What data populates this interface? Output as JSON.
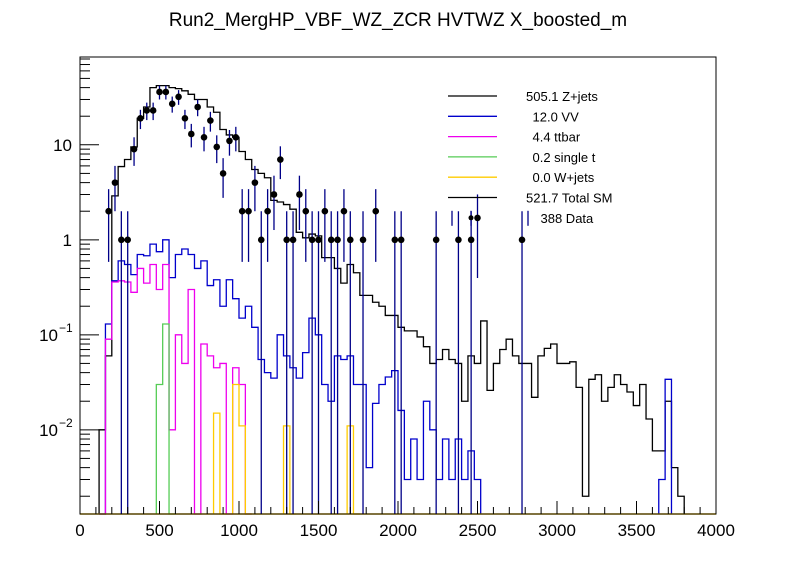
{
  "chart_data": {
    "type": "histogram-stack-log",
    "title": "Run2_MergHP_VBF_WZ_ZCR HVTWZ  X_boosted_m",
    "xlabel": "",
    "ylabel": "",
    "xlim": [
      0,
      4000
    ],
    "ylim": [
      0.0013,
      84
    ],
    "yscale": "log",
    "bin_width": 40,
    "x_ticks": [
      "0",
      "500",
      "1000",
      "1500",
      "2000",
      "2500",
      "3000",
      "3500",
      "4000"
    ],
    "x_tick_values": [
      0,
      500,
      1000,
      1500,
      2000,
      2500,
      3000,
      3500,
      4000
    ],
    "y_ticks": [
      {
        "value": 10,
        "base": "10",
        "exp": ""
      },
      {
        "value": 1,
        "base": "1",
        "exp": ""
      },
      {
        "value": 0.1,
        "base": "10",
        "exp": "−1"
      },
      {
        "value": 0.01,
        "base": "10",
        "exp": "−2"
      }
    ],
    "legend_position": "top-right",
    "series": [
      {
        "name": "Z+jets",
        "yield": "505.1",
        "color": "#000000",
        "kind": "line",
        "bins": [
          [
            120,
            0.01
          ],
          [
            160,
            0.06
          ],
          [
            200,
            2.9
          ],
          [
            240,
            5.9
          ],
          [
            280,
            7.0
          ],
          [
            320,
            9.5
          ],
          [
            360,
            19
          ],
          [
            400,
            25
          ],
          [
            440,
            40
          ],
          [
            480,
            42
          ],
          [
            520,
            42
          ],
          [
            560,
            40
          ],
          [
            600,
            39
          ],
          [
            640,
            37
          ],
          [
            680,
            34
          ],
          [
            720,
            30
          ],
          [
            760,
            30
          ],
          [
            800,
            25
          ],
          [
            840,
            22
          ],
          [
            880,
            14.5
          ],
          [
            920,
            12.7
          ],
          [
            960,
            12
          ],
          [
            1000,
            8.5
          ],
          [
            1040,
            7.0
          ],
          [
            1080,
            5.5
          ],
          [
            1120,
            5.0
          ],
          [
            1160,
            4.5
          ],
          [
            1200,
            2.6
          ],
          [
            1240,
            2.5
          ],
          [
            1280,
            2.35
          ],
          [
            1320,
            2.1
          ],
          [
            1360,
            1.2
          ],
          [
            1400,
            1.05
          ],
          [
            1440,
            1.15
          ],
          [
            1480,
            1.1
          ],
          [
            1520,
            0.65
          ],
          [
            1560,
            0.65
          ],
          [
            1600,
            0.5
          ],
          [
            1640,
            0.35
          ],
          [
            1680,
            0.55
          ],
          [
            1720,
            0.45
          ],
          [
            1760,
            0.26
          ],
          [
            1800,
            0.26
          ],
          [
            1840,
            0.22
          ],
          [
            1880,
            0.2
          ],
          [
            1920,
            0.16
          ],
          [
            1960,
            0.16
          ],
          [
            2000,
            0.12
          ],
          [
            2040,
            0.11
          ],
          [
            2080,
            0.11
          ],
          [
            2120,
            0.095
          ],
          [
            2160,
            0.075
          ],
          [
            2200,
            0.05
          ],
          [
            2240,
            0.055
          ],
          [
            2280,
            0.07
          ],
          [
            2320,
            0.055
          ],
          [
            2360,
            0.05
          ],
          [
            2400,
            0.02
          ],
          [
            2440,
            0.06
          ],
          [
            2480,
            0.05
          ],
          [
            2520,
            0.14
          ],
          [
            2560,
            0.026
          ],
          [
            2600,
            0.05
          ],
          [
            2640,
            0.07
          ],
          [
            2680,
            0.09
          ],
          [
            2720,
            0.06
          ],
          [
            2760,
            0.05
          ],
          [
            2800,
            0.05
          ],
          [
            2840,
            0.022
          ],
          [
            2880,
            0.06
          ],
          [
            2920,
            0.072
          ],
          [
            2960,
            0.08
          ],
          [
            3000,
            0.05
          ],
          [
            3040,
            0.05
          ],
          [
            3080,
            0.052
          ],
          [
            3120,
            0.028
          ],
          [
            3160,
            0.002
          ],
          [
            3200,
            0.034
          ],
          [
            3240,
            0.038
          ],
          [
            3280,
            0.02
          ],
          [
            3320,
            0.028
          ],
          [
            3360,
            0.038
          ],
          [
            3400,
            0.03
          ],
          [
            3440,
            0.025
          ],
          [
            3480,
            0.018
          ],
          [
            3520,
            0.03
          ],
          [
            3560,
            0.013
          ],
          [
            3600,
            0.006
          ],
          [
            3640,
            0.006
          ],
          [
            3680,
            0.02
          ],
          [
            3720,
            0.004
          ],
          [
            3760,
            0.002
          ]
        ]
      },
      {
        "name": "VV",
        "yield": "12.0",
        "color": "#0000cc",
        "kind": "line",
        "bins": [
          [
            120,
            0.001
          ],
          [
            160,
            0.13
          ],
          [
            200,
            0.37
          ],
          [
            240,
            0.6
          ],
          [
            280,
            0.55
          ],
          [
            320,
            0.43
          ],
          [
            360,
            0.7
          ],
          [
            400,
            0.68
          ],
          [
            440,
            0.9
          ],
          [
            480,
            0.75
          ],
          [
            520,
            1.0
          ],
          [
            560,
            0.4
          ],
          [
            600,
            0.7
          ],
          [
            640,
            0.8
          ],
          [
            680,
            0.7
          ],
          [
            720,
            0.5
          ],
          [
            760,
            0.6
          ],
          [
            800,
            0.33
          ],
          [
            840,
            0.38
          ],
          [
            880,
            0.2
          ],
          [
            920,
            0.38
          ],
          [
            960,
            0.24
          ],
          [
            1000,
            0.15
          ],
          [
            1040,
            0.2
          ],
          [
            1080,
            0.12
          ],
          [
            1120,
            0.055
          ],
          [
            1160,
            0.04
          ],
          [
            1200,
            0.035
          ],
          [
            1240,
            0.1
          ],
          [
            1280,
            0.06
          ],
          [
            1320,
            0.045
          ],
          [
            1360,
            0.035
          ],
          [
            1400,
            0.065
          ],
          [
            1440,
            0.15
          ],
          [
            1480,
            0.1
          ],
          [
            1520,
            0.03
          ],
          [
            1560,
            0.02
          ],
          [
            1600,
            0.06
          ],
          [
            1640,
            0.055
          ],
          [
            1680,
            0.06
          ],
          [
            1720,
            0.03
          ],
          [
            1760,
            0.03
          ],
          [
            1800,
            0.004
          ],
          [
            1840,
            0.019
          ],
          [
            1880,
            0.03
          ],
          [
            1920,
            0.036
          ],
          [
            1960,
            0.042
          ],
          [
            2000,
            0.016
          ],
          [
            2040,
            0.003
          ],
          [
            2080,
            0.008
          ],
          [
            2120,
            0.003
          ],
          [
            2160,
            0.02
          ],
          [
            2200,
            0.01
          ],
          [
            2240,
            0.003
          ],
          [
            2280,
            0.008
          ],
          [
            2320,
            0.003
          ],
          [
            2360,
            0.008
          ],
          [
            2400,
            0.003
          ],
          [
            2440,
            0.006
          ],
          [
            2480,
            0.003
          ],
          [
            3640,
            0.003
          ],
          [
            3680,
            0.034
          ]
        ]
      },
      {
        "name": "ttbar",
        "yield": "4.4",
        "color": "#ee00ee",
        "kind": "line",
        "bins": [
          [
            120,
            0.001
          ],
          [
            160,
            0.09
          ],
          [
            200,
            0.36
          ],
          [
            240,
            0.37
          ],
          [
            280,
            0.36
          ],
          [
            320,
            0.28
          ],
          [
            360,
            0.5
          ],
          [
            400,
            0.35
          ],
          [
            440,
            0.55
          ],
          [
            480,
            0.3
          ],
          [
            520,
            0.55
          ],
          [
            560,
            0.01
          ],
          [
            600,
            0.1
          ],
          [
            640,
            0.05
          ],
          [
            680,
            0.3
          ],
          [
            720,
            0.001
          ],
          [
            760,
            0.08
          ],
          [
            800,
            0.06
          ],
          [
            840,
            0.045
          ],
          [
            880,
            0.05
          ],
          [
            920,
            0.001
          ],
          [
            960,
            0.045
          ],
          [
            1000,
            0.03
          ],
          [
            1040,
            0.001
          ]
        ]
      },
      {
        "name": "single t",
        "yield": "0.2",
        "color": "#55cc55",
        "kind": "line",
        "bins": [
          [
            480,
            0.03
          ],
          [
            520,
            0.13
          ],
          [
            560,
            0.001
          ]
        ]
      },
      {
        "name": "W+jets",
        "yield": "0.0",
        "color": "#ffcc00",
        "kind": "line",
        "bins": [
          [
            840,
            0.015
          ],
          [
            880,
            0.001
          ],
          [
            960,
            0.03
          ],
          [
            1000,
            0.011
          ],
          [
            1040,
            0.001
          ],
          [
            1280,
            0.011
          ],
          [
            1320,
            0.001
          ],
          [
            1680,
            0.011
          ],
          [
            1720,
            0.001
          ]
        ]
      },
      {
        "name": "Total SM",
        "yield": "521.7",
        "color": "#000000",
        "kind": "line",
        "bins": []
      }
    ],
    "data": {
      "name": "Data",
      "yield": "388",
      "marker_color": "#000000",
      "error_color": "#000088",
      "points": [
        [
          180,
          2
        ],
        [
          220,
          4
        ],
        [
          260,
          1
        ],
        [
          300,
          1
        ],
        [
          340,
          9
        ],
        [
          380,
          19
        ],
        [
          420,
          23
        ],
        [
          460,
          23
        ],
        [
          500,
          36
        ],
        [
          540,
          36
        ],
        [
          580,
          27
        ],
        [
          620,
          32
        ],
        [
          660,
          19
        ],
        [
          700,
          13
        ],
        [
          740,
          25
        ],
        [
          780,
          12
        ],
        [
          820,
          18
        ],
        [
          860,
          9.5
        ],
        [
          900,
          5
        ],
        [
          940,
          11
        ],
        [
          980,
          12
        ],
        [
          1020,
          2
        ],
        [
          1060,
          2
        ],
        [
          1100,
          4
        ],
        [
          1140,
          1
        ],
        [
          1180,
          2
        ],
        [
          1220,
          3
        ],
        [
          1260,
          7
        ],
        [
          1300,
          1
        ],
        [
          1340,
          1
        ],
        [
          1380,
          3
        ],
        [
          1420,
          2
        ],
        [
          1460,
          1
        ],
        [
          1500,
          1
        ],
        [
          1540,
          2
        ],
        [
          1580,
          1
        ],
        [
          1620,
          1
        ],
        [
          1660,
          2
        ],
        [
          1700,
          1
        ],
        [
          1780,
          1
        ],
        [
          1860,
          2
        ],
        [
          1980,
          1
        ],
        [
          2020,
          1
        ],
        [
          2240,
          1
        ],
        [
          2380,
          1
        ],
        [
          2460,
          1
        ],
        [
          2500,
          1.7
        ],
        [
          2780,
          1
        ]
      ]
    }
  }
}
